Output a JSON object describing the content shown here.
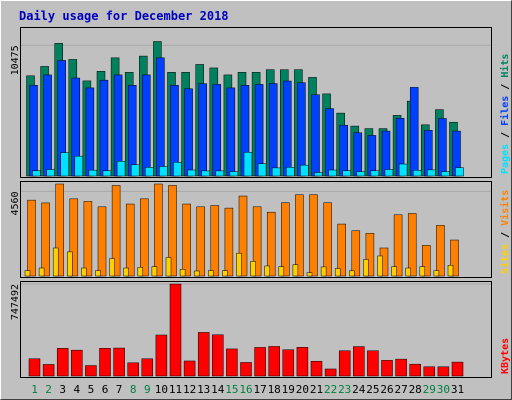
{
  "chart_data": {
    "type": "bar",
    "title": "Daily usage for December 2018",
    "categories": [
      "1",
      "2",
      "3",
      "4",
      "5",
      "6",
      "7",
      "8",
      "9",
      "10",
      "11",
      "12",
      "13",
      "14",
      "15",
      "16",
      "17",
      "18",
      "19",
      "20",
      "21",
      "22",
      "23",
      "24",
      "25",
      "26",
      "27",
      "28",
      "29",
      "30",
      "31"
    ],
    "weekend_days": [
      "1",
      "2",
      "8",
      "9",
      "15",
      "16",
      "22",
      "23",
      "29",
      "30"
    ],
    "colors": {
      "hits": "#00805c",
      "files": "#0040ff",
      "pages": "#00e0ff",
      "visits": "#ff8000",
      "sites": "#ffd000",
      "kbytes": "#ff0000",
      "title": "#0000c0",
      "weekday": "#000000",
      "weekend": "#008040"
    },
    "panels": [
      {
        "id": "hits_files_pages",
        "ymax_label": "10475",
        "ymax": 11700,
        "right_label": [
          {
            "text": "Hits",
            "color": "#00805c"
          },
          {
            "text": " / ",
            "color": "#000000"
          },
          {
            "text": "Files",
            "color": "#0040ff"
          },
          {
            "text": " / ",
            "color": "#000000"
          },
          {
            "text": "Pages",
            "color": "#00e0ff"
          }
        ],
        "series": [
          {
            "name": "Hits",
            "values": [
              8030,
              8780,
              10630,
              9340,
              7620,
              8390,
              9470,
              8310,
              9610,
              10780,
              8310,
              8310,
              8940,
              8660,
              8100,
              8310,
              8310,
              8520,
              8520,
              8520,
              7900,
              6580,
              5040,
              4000,
              3800,
              3800,
              4860,
              6000,
              4100,
              5320,
              4310
            ]
          },
          {
            "name": "Files",
            "values": [
              7270,
              8100,
              9260,
              7850,
              7060,
              7680,
              8100,
              7270,
              8100,
              9470,
              7270,
              6990,
              7400,
              7340,
              7060,
              7270,
              7340,
              7410,
              7610,
              7480,
              6510,
              5400,
              4070,
              3460,
              3250,
              3600,
              4630,
              7100,
              3660,
              4610,
              3600
            ]
          },
          {
            "name": "Pages",
            "values": [
              420,
              520,
              1870,
              1590,
              470,
              420,
              1180,
              900,
              690,
              760,
              1100,
              480,
              410,
              410,
              350,
              1900,
              980,
              650,
              700,
              870,
              280,
              480,
              430,
              350,
              420,
              520,
              960,
              460,
              490,
              350,
              670
            ]
          }
        ]
      },
      {
        "id": "visits_sites",
        "ymax_label": "4560",
        "ymax": 4960,
        "right_label": [
          {
            "text": "Visits",
            "color": "#ff8000"
          },
          {
            "text": " / ",
            "color": "#000000"
          },
          {
            "text": "Sites",
            "color": "#ffd000"
          }
        ],
        "series": [
          {
            "name": "Visits",
            "values": [
              4090,
              3940,
              4960,
              4160,
              4020,
              3730,
              4880,
              3880,
              4160,
              4960,
              4880,
              3880,
              3730,
              3800,
              3660,
              4310,
              3730,
              3440,
              3950,
              4380,
              4380,
              3950,
              2800,
              2440,
              2300,
              1510,
              3300,
              3370,
              1650,
              2730,
              1940
            ]
          },
          {
            "name": "Sites",
            "values": [
              290,
              430,
              1510,
              1300,
              430,
              290,
              940,
              430,
              470,
              500,
              1000,
              360,
              270,
              290,
              290,
              1230,
              790,
              540,
              500,
              610,
              180,
              490,
              400,
              280,
              890,
              1080,
              500,
              430,
              500,
              290,
              580
            ]
          }
        ]
      },
      {
        "id": "kbytes",
        "ymax_label": "747492",
        "ymax": 747492,
        "right_label": [
          {
            "text": "KBytes",
            "color": "#ff0000"
          }
        ],
        "series": [
          {
            "name": "KBytes",
            "values": [
              140000,
              94000,
              225000,
              210000,
              85000,
              225000,
              227000,
              107000,
              140000,
              333000,
              747000,
              122000,
              354000,
              335000,
              220000,
              110000,
              232000,
              240000,
              213000,
              233000,
              120000,
              57000,
              205000,
              239000,
              205000,
              127000,
              137000,
              96000,
              75000,
              75000,
              113000
            ]
          }
        ]
      }
    ]
  }
}
